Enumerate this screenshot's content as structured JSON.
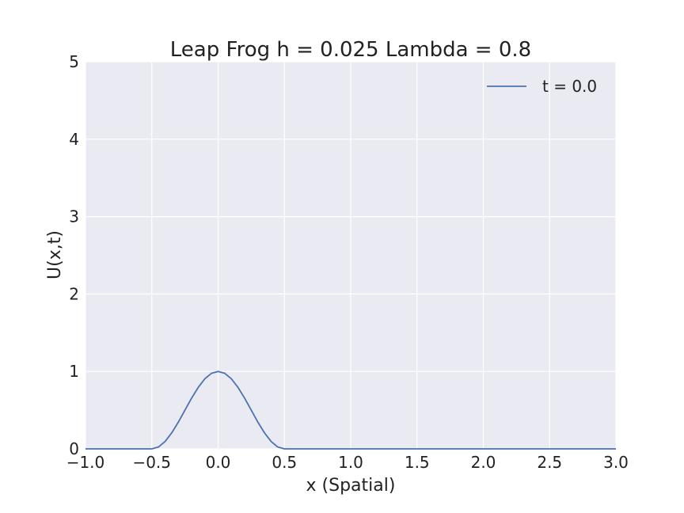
{
  "chart_data": {
    "type": "line",
    "title": "Leap Frog h = 0.025 Lambda = 0.8",
    "xlabel": "x (Spatial)",
    "ylabel": "U(x,t)",
    "xlim": [
      -1.0,
      3.0
    ],
    "ylim": [
      0,
      5
    ],
    "xticks": [
      "−1.0",
      "−0.5",
      "0.0",
      "0.5",
      "1.0",
      "1.5",
      "2.0",
      "2.5",
      "3.0"
    ],
    "yticks": [
      "0",
      "1",
      "2",
      "3",
      "4",
      "5"
    ],
    "grid": true,
    "legend_position": "top-right",
    "series": [
      {
        "name": "t = 0.0",
        "color": "#4C72B0",
        "x": [
          -1.0,
          -0.75,
          -0.5,
          -0.45,
          -0.4,
          -0.35,
          -0.3,
          -0.25,
          -0.2,
          -0.15,
          -0.1,
          -0.05,
          0.0,
          0.05,
          0.1,
          0.15,
          0.2,
          0.25,
          0.3,
          0.35,
          0.4,
          0.45,
          0.5,
          1.0,
          1.5,
          2.0,
          2.5,
          3.0
        ],
        "y": [
          0,
          0,
          0,
          0.024,
          0.095,
          0.206,
          0.345,
          0.5,
          0.655,
          0.794,
          0.905,
          0.976,
          1.0,
          0.976,
          0.905,
          0.794,
          0.655,
          0.5,
          0.345,
          0.206,
          0.095,
          0.024,
          0,
          0,
          0,
          0,
          0,
          0
        ]
      }
    ]
  }
}
